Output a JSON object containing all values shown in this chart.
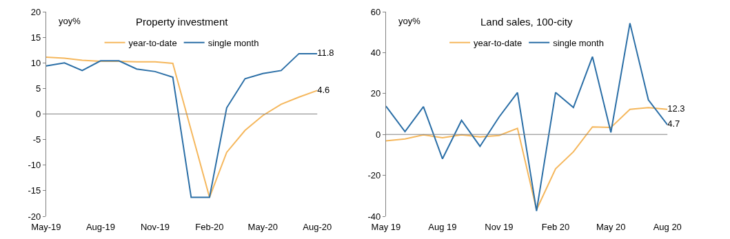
{
  "chart_data": [
    {
      "type": "line",
      "title": "Property investment",
      "ylabel": "yoy%",
      "legend": "top",
      "ref_lines": [
        {
          "axis": "y",
          "value": 0,
          "color": "#808080"
        }
      ],
      "xlim": [
        "2019-05",
        "2020-08"
      ],
      "xticks": [
        {
          "value": "2019-05",
          "label": "May-19"
        },
        {
          "value": "2019-08",
          "label": "Aug-19"
        },
        {
          "value": "2019-11",
          "label": "Nov-19"
        },
        {
          "value": "2020-02",
          "label": "Feb-20"
        },
        {
          "value": "2020-05",
          "label": "May-20"
        },
        {
          "value": "2020-08",
          "label": "Aug-20"
        }
      ],
      "ylim": [
        -20,
        20
      ],
      "yticks": [
        -20,
        -15,
        -10,
        -5,
        0,
        5,
        10,
        15,
        20
      ],
      "series": [
        {
          "name": "year-to-date",
          "color": "#f5b75c",
          "x": [
            "2019-05",
            "2019-06",
            "2019-07",
            "2019-08",
            "2019-09",
            "2019-10",
            "2019-11",
            "2019-12",
            "2020-02",
            "2020-03",
            "2020-04",
            "2020-05",
            "2020-06",
            "2020-07",
            "2020-08"
          ],
          "values": [
            11.1,
            10.9,
            10.5,
            10.3,
            10.3,
            10.2,
            10.2,
            9.9,
            -16.3,
            -7.5,
            -3.2,
            -0.3,
            1.9,
            3.3,
            4.6
          ],
          "value_labels": [
            null,
            null,
            null,
            null,
            null,
            null,
            null,
            null,
            null,
            null,
            null,
            null,
            null,
            null,
            "4.6"
          ]
        },
        {
          "name": "single month",
          "color": "#2a6ea6",
          "x": [
            "2019-05",
            "2019-06",
            "2019-07",
            "2019-08",
            "2019-09",
            "2019-10",
            "2019-11",
            "2019-12",
            "2020-01",
            "2020-02",
            "2020-03",
            "2020-04",
            "2020-05",
            "2020-06",
            "2020-07",
            "2020-08"
          ],
          "values": [
            9.4,
            10.0,
            8.5,
            10.4,
            10.4,
            8.8,
            8.3,
            7.2,
            -16.3,
            -16.3,
            1.2,
            6.9,
            7.9,
            8.5,
            11.8,
            11.8
          ],
          "value_labels": [
            null,
            null,
            null,
            null,
            null,
            null,
            null,
            null,
            null,
            null,
            null,
            null,
            null,
            null,
            null,
            "11.8"
          ]
        }
      ]
    },
    {
      "type": "line",
      "title": "Land sales, 100-city",
      "ylabel": "yoy%",
      "legend": "top",
      "ref_lines": [
        {
          "axis": "y",
          "value": 0,
          "color": "#808080"
        }
      ],
      "xlim": [
        "2019-05",
        "2020-08"
      ],
      "xticks": [
        {
          "value": "2019-05",
          "label": "May 19"
        },
        {
          "value": "2019-08",
          "label": "Aug 19"
        },
        {
          "value": "2019-11",
          "label": "Nov 19"
        },
        {
          "value": "2020-02",
          "label": "Feb 20"
        },
        {
          "value": "2020-05",
          "label": "May 20"
        },
        {
          "value": "2020-08",
          "label": "Aug 20"
        }
      ],
      "ylim": [
        -40,
        60
      ],
      "yticks": [
        -40,
        -20,
        0,
        20,
        40,
        60
      ],
      "x": [
        "2019-05",
        "2019-06",
        "2019-07",
        "2019-08",
        "2019-09",
        "2019-10",
        "2019-11",
        "2019-12",
        "2020-01",
        "2020-02",
        "2020-03",
        "2020-04",
        "2020-05",
        "2020-06",
        "2020-07",
        "2020-08"
      ],
      "series": [
        {
          "name": "year-to-date",
          "color": "#f5b75c",
          "values": [
            -3.1,
            -2.2,
            -0.2,
            -1.6,
            -0.2,
            -1.2,
            -0.5,
            3.0,
            -36.8,
            -16.8,
            -8.5,
            3.7,
            3.4,
            12.3,
            13.1,
            12.3
          ],
          "value_labels": [
            null,
            null,
            null,
            null,
            null,
            null,
            null,
            null,
            null,
            null,
            null,
            null,
            null,
            null,
            null,
            "12.3"
          ]
        },
        {
          "name": "single month",
          "color": "#2a6ea6",
          "values": [
            13.8,
            1.4,
            13.6,
            -11.9,
            6.9,
            -5.8,
            8.5,
            20.5,
            -37.4,
            20.5,
            13.2,
            38.0,
            1.0,
            54.4,
            16.9,
            4.7
          ],
          "value_labels": [
            null,
            null,
            null,
            null,
            null,
            null,
            null,
            null,
            null,
            null,
            null,
            null,
            null,
            null,
            null,
            "4.7"
          ]
        }
      ]
    }
  ]
}
